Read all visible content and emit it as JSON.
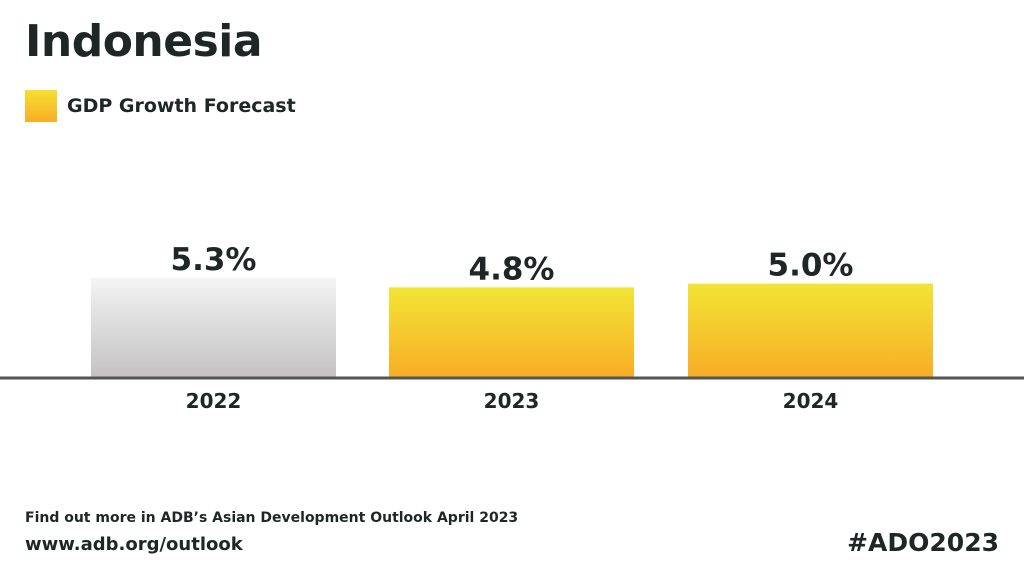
{
  "title": "Indonesia",
  "colors": {
    "forecast_top": "#f2e535",
    "forecast_bottom": "#f8ad27",
    "actual_top": "#f4f4f4",
    "actual_bottom": "#c4c2c3",
    "baseline": "#555555",
    "text": "#1f2626"
  },
  "chart_data": {
    "type": "bar",
    "categories": [
      "2022",
      "2023",
      "2024"
    ],
    "series": [
      {
        "name": "GDP Growth Forecast",
        "values": [
          5.3,
          4.8,
          5.0
        ],
        "value_labels": [
          "5.3%",
          "4.8%",
          "5.0%"
        ],
        "forecast": [
          false,
          true,
          true
        ]
      }
    ],
    "legend": {
      "placement": "top-left",
      "label": "GDP Growth Forecast"
    },
    "title": "Indonesia",
    "xlabel": "",
    "ylabel": "",
    "ylim": [
      0,
      5.3
    ],
    "grid": false
  },
  "footer": {
    "note": "Find out more in ADB’s Asian Development Outlook April 2023",
    "url": "www.adb.org/outlook",
    "hashtag": "#ADO2023"
  }
}
